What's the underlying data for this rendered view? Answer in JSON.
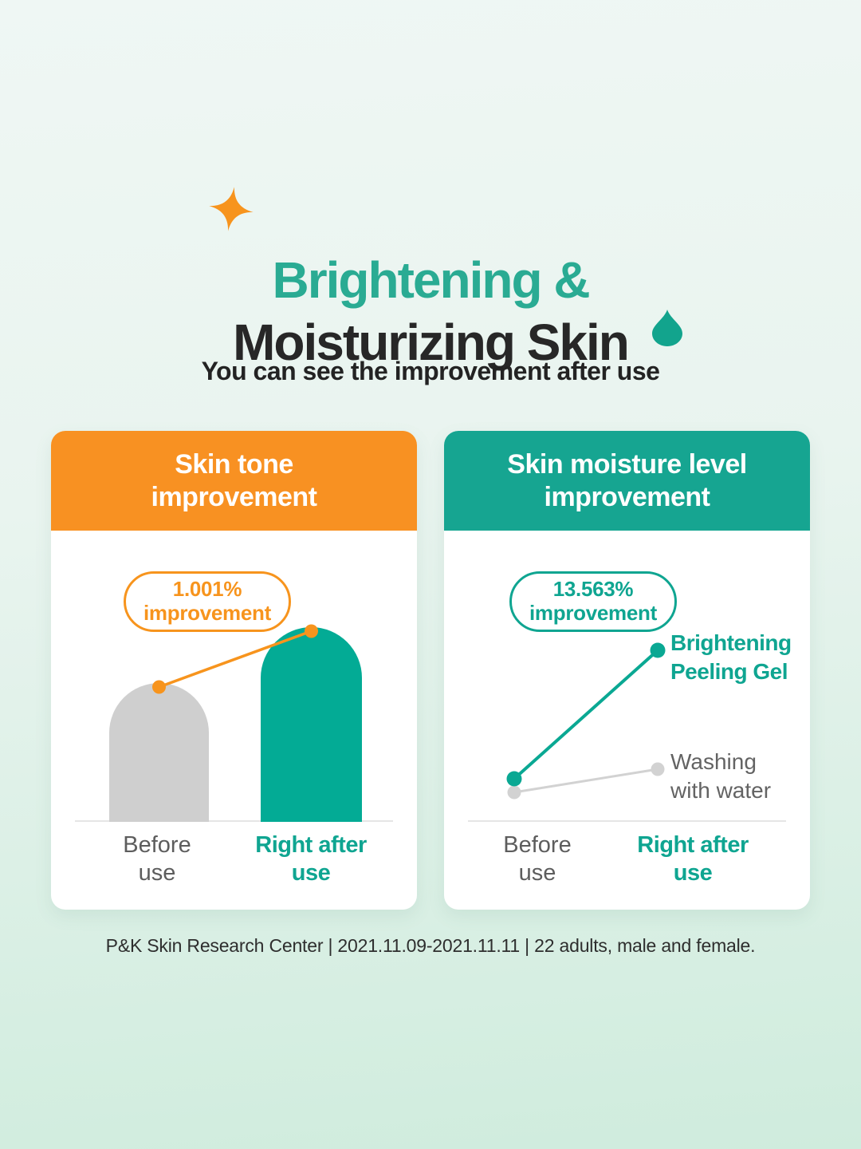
{
  "page": {
    "title": {
      "line1": "Brightening &",
      "line2": "Moisturizing Skin"
    },
    "subtitle": "You can see the improvement after use",
    "footnote": "P&K Skin Research Center | 2021.11.09-2021.11.11 | 22 adults, male and female.",
    "icons": {
      "sparkle": "sparkle-icon",
      "drop": "water-drop-icon"
    }
  },
  "colors": {
    "accent_orange": "#f7941d",
    "header_orange": "#f89122",
    "accent_teal": "#0fa591",
    "header_teal": "#16a591",
    "title_teal": "#2aab93",
    "title_dark": "#272727",
    "bar_gray": "#cfcfcf",
    "bar_teal": "#03ab95",
    "line_gray": "#d2d2d2",
    "background_top": "#eff7f4",
    "background_bottom": "#cfecdd"
  },
  "cards": [
    {
      "header": {
        "line1": "Skin tone",
        "line2": "improvement"
      },
      "badge": {
        "line1": "1.001%",
        "line2": "improvement"
      },
      "labels": {
        "before": "Before\nuse",
        "after": "Right after\nuse"
      }
    },
    {
      "header": {
        "line1": "Skin moisture level",
        "line2": "improvement"
      },
      "badge": {
        "line1": "13.563%",
        "line2": "improvement"
      },
      "series_labels": {
        "product": "Brightening\nPeeling Gel",
        "control": "Washing\nwith water"
      },
      "labels": {
        "before": "Before\nuse",
        "after": "Right after\nuse"
      }
    }
  ],
  "chart_data": [
    {
      "type": "bar",
      "title": "Skin tone improvement",
      "categories": [
        "Before use",
        "Right after use"
      ],
      "values_relative": [
        0.715,
        1.0
      ],
      "bar_colors": [
        "#cfcfcf",
        "#03ab95"
      ],
      "annotation": "1.001% improvement",
      "connector_color": "#f7941d",
      "note": "no numeric axis shown; bar heights are relative, connector line links bar tops"
    },
    {
      "type": "line",
      "title": "Skin moisture level improvement",
      "categories": [
        "Before use",
        "Right after use"
      ],
      "series": [
        {
          "name": "Brightening Peeling Gel",
          "values_relative": [
            0.17,
            0.975
          ],
          "color": "#0aa893"
        },
        {
          "name": "Washing with water",
          "values_relative": [
            0.085,
            0.23
          ],
          "color": "#d2d2d2"
        }
      ],
      "annotation": "13.563% improvement",
      "note": "no numeric axis shown; values are relative vertical positions"
    }
  ]
}
